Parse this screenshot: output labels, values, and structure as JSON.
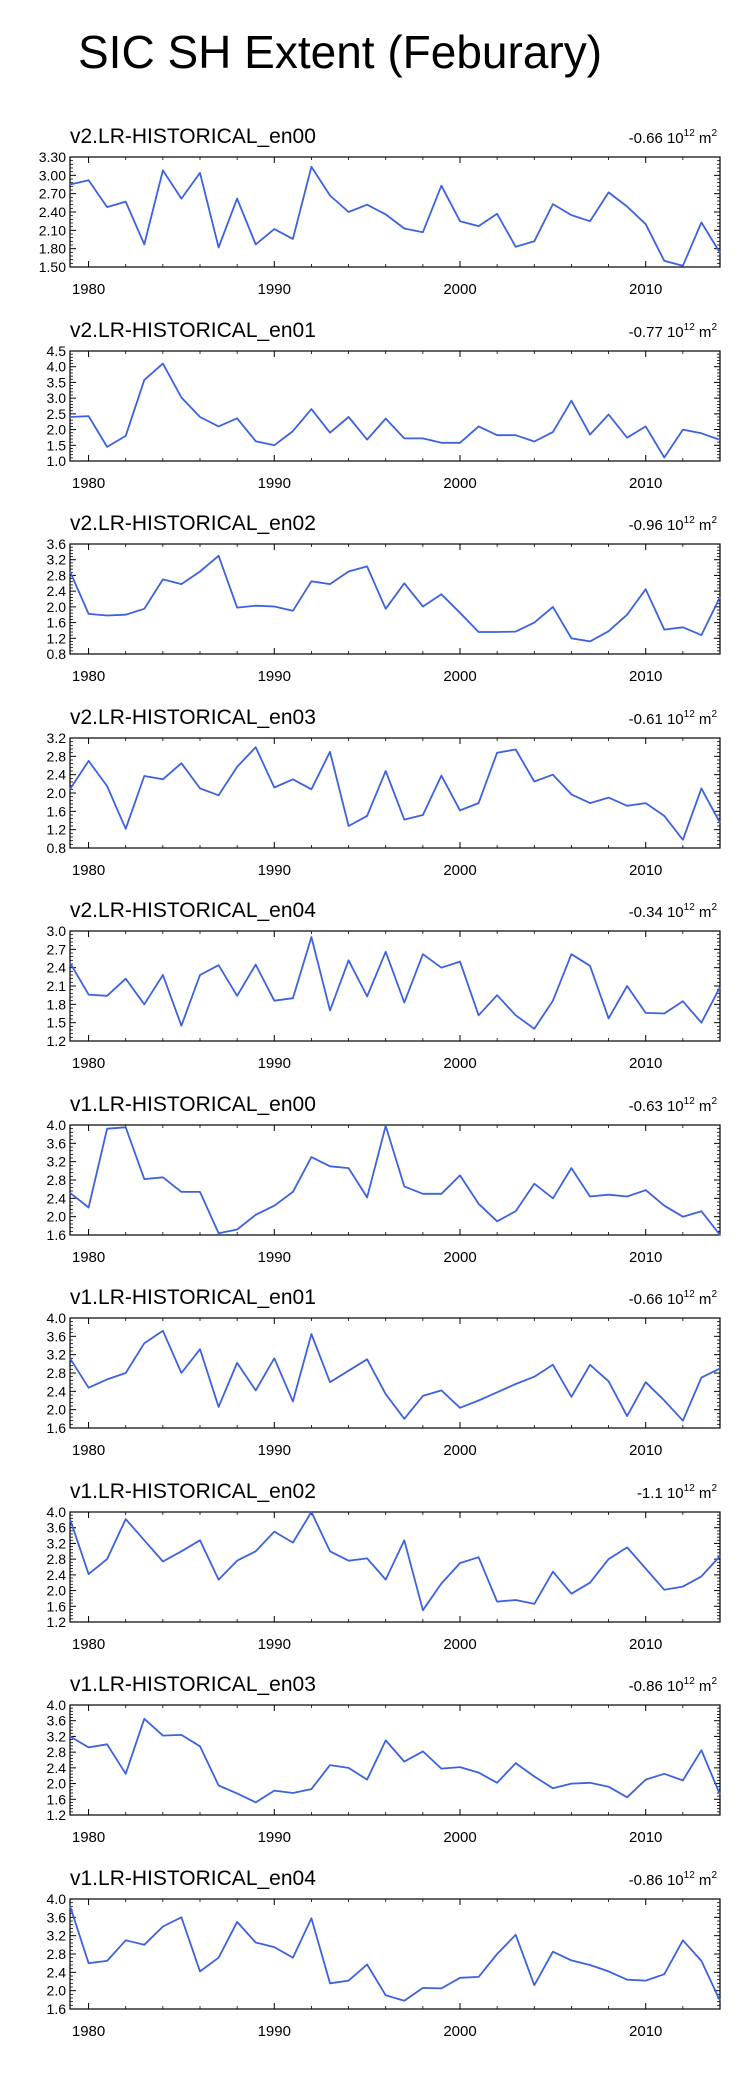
{
  "title": "SIC SH Extent (Feburary)",
  "line_color": "#3d62e0",
  "chart_data": [
    {
      "type": "line",
      "title": "v2.LR-HISTORICAL_en00",
      "trend": {
        "value": "-0.66",
        "unit_base": "10",
        "unit_exp": "12",
        "unit_suffix": "m",
        "unit_suffix_exp": "2"
      },
      "ylim": [
        1.5,
        3.3
      ],
      "yticks": [
        1.5,
        1.8,
        2.1,
        2.4,
        2.7,
        3.0,
        3.3
      ],
      "ytick_labels": [
        "1.50",
        "1.80",
        "2.10",
        "2.40",
        "2.70",
        "3.00",
        "3.30"
      ],
      "xlim": [
        1979,
        2014
      ],
      "xticks": [
        1980,
        1990,
        2000,
        2010
      ],
      "xtick_labels": [
        "1980",
        "1990",
        "2000",
        "2010"
      ],
      "x": [
        1979,
        1980,
        1981,
        1982,
        1983,
        1984,
        1985,
        1986,
        1987,
        1988,
        1989,
        1990,
        1991,
        1992,
        1993,
        1994,
        1995,
        1996,
        1997,
        1998,
        1999,
        2000,
        2001,
        2002,
        2003,
        2004,
        2005,
        2006,
        2007,
        2008,
        2009,
        2010,
        2011,
        2012,
        2013,
        2014
      ],
      "values": [
        2.85,
        2.92,
        2.48,
        2.57,
        1.87,
        3.08,
        2.62,
        3.04,
        1.82,
        2.62,
        1.87,
        2.12,
        1.96,
        3.14,
        2.67,
        2.4,
        2.52,
        2.36,
        2.13,
        2.07,
        2.83,
        2.25,
        2.17,
        2.37,
        1.83,
        1.92,
        2.53,
        2.35,
        2.25,
        2.72,
        2.49,
        2.2,
        1.6,
        1.52,
        2.23,
        1.73
      ]
    },
    {
      "type": "line",
      "title": "v2.LR-HISTORICAL_en01",
      "trend": {
        "value": "-0.77",
        "unit_base": "10",
        "unit_exp": "12",
        "unit_suffix": "m",
        "unit_suffix_exp": "2"
      },
      "ylim": [
        1.0,
        4.5
      ],
      "yticks": [
        1.0,
        1.5,
        2.0,
        2.5,
        3.0,
        3.5,
        4.0,
        4.5
      ],
      "ytick_labels": [
        "1.0",
        "1.5",
        "2.0",
        "2.5",
        "3.0",
        "3.5",
        "4.0",
        "4.5"
      ],
      "xlim": [
        1979,
        2014
      ],
      "xticks": [
        1980,
        1990,
        2000,
        2010
      ],
      "xtick_labels": [
        "1980",
        "1990",
        "2000",
        "2010"
      ],
      "x": [
        1979,
        1980,
        1981,
        1982,
        1983,
        1984,
        1985,
        1986,
        1987,
        1988,
        1989,
        1990,
        1991,
        1992,
        1993,
        1994,
        1995,
        1996,
        1997,
        1998,
        1999,
        2000,
        2001,
        2002,
        2003,
        2004,
        2005,
        2006,
        2007,
        2008,
        2009,
        2010,
        2011,
        2012,
        2013,
        2014
      ],
      "values": [
        2.4,
        2.43,
        1.45,
        1.8,
        3.58,
        4.1,
        3.02,
        2.4,
        2.1,
        2.36,
        1.63,
        1.5,
        1.95,
        2.65,
        1.9,
        2.4,
        1.68,
        2.35,
        1.72,
        1.72,
        1.58,
        1.58,
        2.1,
        1.82,
        1.82,
        1.62,
        1.92,
        2.92,
        1.84,
        2.48,
        1.74,
        2.1,
        1.11,
        2.0,
        1.88,
        1.67
      ]
    },
    {
      "type": "line",
      "title": "v2.LR-HISTORICAL_en02",
      "trend": {
        "value": "-0.96",
        "unit_base": "10",
        "unit_exp": "12",
        "unit_suffix": "m",
        "unit_suffix_exp": "2"
      },
      "ylim": [
        0.8,
        3.6
      ],
      "yticks": [
        0.8,
        1.2,
        1.6,
        2.0,
        2.4,
        2.8,
        3.2,
        3.6
      ],
      "ytick_labels": [
        "0.8",
        "1.2",
        "1.6",
        "2.0",
        "2.4",
        "2.8",
        "3.2",
        "3.6"
      ],
      "xlim": [
        1979,
        2014
      ],
      "xticks": [
        1980,
        1990,
        2000,
        2010
      ],
      "xtick_labels": [
        "1980",
        "1990",
        "2000",
        "2010"
      ],
      "x": [
        1979,
        1980,
        1981,
        1982,
        1983,
        1984,
        1985,
        1986,
        1987,
        1988,
        1989,
        1990,
        1991,
        1992,
        1993,
        1994,
        1995,
        1996,
        1997,
        1998,
        1999,
        2000,
        2001,
        2002,
        2003,
        2004,
        2005,
        2006,
        2007,
        2008,
        2009,
        2010,
        2011,
        2012,
        2013,
        2014
      ],
      "values": [
        2.9,
        1.82,
        1.78,
        1.8,
        1.95,
        2.7,
        2.58,
        2.9,
        3.3,
        1.98,
        2.03,
        2.01,
        1.9,
        2.65,
        2.58,
        2.9,
        3.03,
        1.95,
        2.6,
        2.01,
        2.32,
        1.85,
        1.36,
        1.36,
        1.37,
        1.6,
        2.0,
        1.2,
        1.12,
        1.38,
        1.8,
        2.45,
        1.42,
        1.48,
        1.28,
        2.25
      ]
    },
    {
      "type": "line",
      "title": "v2.LR-HISTORICAL_en03",
      "trend": {
        "value": "-0.61",
        "unit_base": "10",
        "unit_exp": "12",
        "unit_suffix": "m",
        "unit_suffix_exp": "2"
      },
      "ylim": [
        0.8,
        3.2
      ],
      "yticks": [
        0.8,
        1.2,
        1.6,
        2.0,
        2.4,
        2.8,
        3.2
      ],
      "ytick_labels": [
        "0.8",
        "1.2",
        "1.6",
        "2.0",
        "2.4",
        "2.8",
        "3.2"
      ],
      "xlim": [
        1979,
        2014
      ],
      "xticks": [
        1980,
        1990,
        2000,
        2010
      ],
      "xtick_labels": [
        "1980",
        "1990",
        "2000",
        "2010"
      ],
      "x": [
        1979,
        1980,
        1981,
        1982,
        1983,
        1984,
        1985,
        1986,
        1987,
        1988,
        1989,
        1990,
        1991,
        1992,
        1993,
        1994,
        1995,
        1996,
        1997,
        1998,
        1999,
        2000,
        2001,
        2002,
        2003,
        2004,
        2005,
        2006,
        2007,
        2008,
        2009,
        2010,
        2011,
        2012,
        2013,
        2014
      ],
      "values": [
        2.08,
        2.7,
        2.15,
        1.22,
        2.37,
        2.3,
        2.65,
        2.1,
        1.95,
        2.57,
        3.0,
        2.12,
        2.3,
        2.08,
        2.9,
        1.28,
        1.5,
        2.48,
        1.42,
        1.52,
        2.38,
        1.62,
        1.78,
        2.88,
        2.95,
        2.25,
        2.4,
        1.97,
        1.78,
        1.9,
        1.72,
        1.78,
        1.5,
        0.98,
        2.1,
        1.35
      ]
    },
    {
      "type": "line",
      "title": "v2.LR-HISTORICAL_en04",
      "trend": {
        "value": "-0.34",
        "unit_base": "10",
        "unit_exp": "12",
        "unit_suffix": "m",
        "unit_suffix_exp": "2"
      },
      "ylim": [
        1.2,
        3.0
      ],
      "yticks": [
        1.2,
        1.5,
        1.8,
        2.1,
        2.4,
        2.7,
        3.0
      ],
      "ytick_labels": [
        "1.2",
        "1.5",
        "1.8",
        "2.1",
        "2.4",
        "2.7",
        "3.0"
      ],
      "xlim": [
        1979,
        2014
      ],
      "xticks": [
        1980,
        1990,
        2000,
        2010
      ],
      "xtick_labels": [
        "1980",
        "1990",
        "2000",
        "2010"
      ],
      "x": [
        1979,
        1980,
        1981,
        1982,
        1983,
        1984,
        1985,
        1986,
        1987,
        1988,
        1989,
        1990,
        1991,
        1992,
        1993,
        1994,
        1995,
        1996,
        1997,
        1998,
        1999,
        2000,
        2001,
        2002,
        2003,
        2004,
        2005,
        2006,
        2007,
        2008,
        2009,
        2010,
        2011,
        2012,
        2013,
        2014
      ],
      "values": [
        2.48,
        1.96,
        1.94,
        2.22,
        1.8,
        2.28,
        1.45,
        2.28,
        2.44,
        1.94,
        2.45,
        1.86,
        1.9,
        2.9,
        1.7,
        2.52,
        1.93,
        2.66,
        1.83,
        2.62,
        2.4,
        2.5,
        1.62,
        1.95,
        1.62,
        1.4,
        1.86,
        2.62,
        2.43,
        1.57,
        2.1,
        1.66,
        1.65,
        1.85,
        1.5,
        2.08
      ]
    },
    {
      "type": "line",
      "title": "v1.LR-HISTORICAL_en00",
      "trend": {
        "value": "-0.63",
        "unit_base": "10",
        "unit_exp": "12",
        "unit_suffix": "m",
        "unit_suffix_exp": "2"
      },
      "ylim": [
        1.6,
        4.0
      ],
      "yticks": [
        1.6,
        2.0,
        2.4,
        2.8,
        3.2,
        3.6,
        4.0
      ],
      "ytick_labels": [
        "1.6",
        "2.0",
        "2.4",
        "2.8",
        "3.2",
        "3.6",
        "4.0"
      ],
      "xlim": [
        1979,
        2014
      ],
      "xticks": [
        1980,
        1990,
        2000,
        2010
      ],
      "xtick_labels": [
        "1980",
        "1990",
        "2000",
        "2010"
      ],
      "x": [
        1979,
        1980,
        1981,
        1982,
        1983,
        1984,
        1985,
        1986,
        1987,
        1988,
        1989,
        1990,
        1991,
        1992,
        1993,
        1994,
        1995,
        1996,
        1997,
        1998,
        1999,
        2000,
        2001,
        2002,
        2003,
        2004,
        2005,
        2006,
        2007,
        2008,
        2009,
        2010,
        2011,
        2012,
        2013,
        2014
      ],
      "values": [
        2.52,
        2.2,
        3.92,
        3.95,
        2.82,
        2.86,
        2.54,
        2.54,
        1.64,
        1.72,
        2.04,
        2.24,
        2.54,
        3.3,
        3.1,
        3.06,
        2.42,
        3.98,
        2.66,
        2.5,
        2.5,
        2.9,
        2.28,
        1.9,
        2.12,
        2.72,
        2.4,
        3.06,
        2.44,
        2.48,
        2.44,
        2.58,
        2.24,
        2.0,
        2.12,
        1.6
      ]
    },
    {
      "type": "line",
      "title": "v1.LR-HISTORICAL_en01",
      "trend": {
        "value": "-0.66",
        "unit_base": "10",
        "unit_exp": "12",
        "unit_suffix": "m",
        "unit_suffix_exp": "2"
      },
      "ylim": [
        1.6,
        4.0
      ],
      "yticks": [
        1.6,
        2.0,
        2.4,
        2.8,
        3.2,
        3.6,
        4.0
      ],
      "ytick_labels": [
        "1.6",
        "2.0",
        "2.4",
        "2.8",
        "3.2",
        "3.6",
        "4.0"
      ],
      "xlim": [
        1979,
        2014
      ],
      "xticks": [
        1980,
        1990,
        2000,
        2010
      ],
      "xtick_labels": [
        "1980",
        "1990",
        "2000",
        "2010"
      ],
      "x": [
        1979,
        1980,
        1981,
        1982,
        1983,
        1984,
        1985,
        1986,
        1987,
        1988,
        1989,
        1990,
        1991,
        1992,
        1993,
        1994,
        1995,
        1996,
        1997,
        1998,
        1999,
        2000,
        2001,
        2002,
        2003,
        2004,
        2005,
        2006,
        2007,
        2008,
        2009,
        2010,
        2011,
        2012,
        2013,
        2014
      ],
      "values": [
        3.12,
        2.48,
        2.66,
        2.8,
        3.45,
        3.72,
        2.8,
        3.32,
        2.06,
        3.02,
        2.42,
        3.12,
        2.18,
        3.65,
        2.6,
        2.85,
        3.1,
        2.34,
        1.8,
        2.3,
        2.42,
        2.04,
        2.2,
        2.38,
        2.56,
        2.72,
        2.98,
        2.28,
        2.98,
        2.62,
        1.86,
        2.6,
        2.2,
        1.76,
        2.7,
        2.9
      ]
    },
    {
      "type": "line",
      "title": "v1.LR-HISTORICAL_en02",
      "trend": {
        "value": "-1.1",
        "unit_base": "10",
        "unit_exp": "12",
        "unit_suffix": "m",
        "unit_suffix_exp": "2"
      },
      "ylim": [
        1.2,
        4.0
      ],
      "yticks": [
        1.2,
        1.6,
        2.0,
        2.4,
        2.8,
        3.2,
        3.6,
        4.0
      ],
      "ytick_labels": [
        "1.2",
        "1.6",
        "2.0",
        "2.4",
        "2.8",
        "3.2",
        "3.6",
        "4.0"
      ],
      "xlim": [
        1979,
        2014
      ],
      "xticks": [
        1980,
        1990,
        2000,
        2010
      ],
      "xtick_labels": [
        "1980",
        "1990",
        "2000",
        "2010"
      ],
      "x": [
        1979,
        1980,
        1981,
        1982,
        1983,
        1984,
        1985,
        1986,
        1987,
        1988,
        1989,
        1990,
        1991,
        1992,
        1993,
        1994,
        1995,
        1996,
        1997,
        1998,
        1999,
        2000,
        2001,
        2002,
        2003,
        2004,
        2005,
        2006,
        2007,
        2008,
        2009,
        2010,
        2011,
        2012,
        2013,
        2014
      ],
      "values": [
        3.82,
        2.42,
        2.8,
        3.82,
        3.28,
        2.74,
        3.0,
        3.28,
        2.28,
        2.76,
        3.0,
        3.5,
        3.22,
        4.0,
        3.0,
        2.76,
        2.82,
        2.28,
        3.28,
        1.5,
        2.18,
        2.7,
        2.85,
        1.72,
        1.76,
        1.66,
        2.48,
        1.92,
        2.2,
        2.8,
        3.1,
        2.56,
        2.02,
        2.1,
        2.36,
        2.88
      ]
    },
    {
      "type": "line",
      "title": "v1.LR-HISTORICAL_en03",
      "trend": {
        "value": "-0.86",
        "unit_base": "10",
        "unit_exp": "12",
        "unit_suffix": "m",
        "unit_suffix_exp": "2"
      },
      "ylim": [
        1.2,
        4.0
      ],
      "yticks": [
        1.2,
        1.6,
        2.0,
        2.4,
        2.8,
        3.2,
        3.6,
        4.0
      ],
      "ytick_labels": [
        "1.2",
        "1.6",
        "2.0",
        "2.4",
        "2.8",
        "3.2",
        "3.6",
        "4.0"
      ],
      "xlim": [
        1979,
        2014
      ],
      "xticks": [
        1980,
        1990,
        2000,
        2010
      ],
      "xtick_labels": [
        "1980",
        "1990",
        "2000",
        "2010"
      ],
      "x": [
        1979,
        1980,
        1981,
        1982,
        1983,
        1984,
        1985,
        1986,
        1987,
        1988,
        1989,
        1990,
        1991,
        1992,
        1993,
        1994,
        1995,
        1996,
        1997,
        1998,
        1999,
        2000,
        2001,
        2002,
        2003,
        2004,
        2005,
        2006,
        2007,
        2008,
        2009,
        2010,
        2011,
        2012,
        2013,
        2014
      ],
      "values": [
        3.2,
        2.92,
        3.0,
        2.25,
        3.65,
        3.22,
        3.24,
        2.95,
        1.95,
        1.75,
        1.52,
        1.82,
        1.76,
        1.86,
        2.47,
        2.4,
        2.1,
        3.1,
        2.56,
        2.82,
        2.38,
        2.42,
        2.28,
        2.02,
        2.52,
        2.18,
        1.88,
        2.0,
        2.02,
        1.92,
        1.65,
        2.1,
        2.25,
        2.08,
        2.85,
        1.72
      ]
    },
    {
      "type": "line",
      "title": "v1.LR-HISTORICAL_en04",
      "trend": {
        "value": "-0.86",
        "unit_base": "10",
        "unit_exp": "12",
        "unit_suffix": "m",
        "unit_suffix_exp": "2"
      },
      "ylim": [
        1.6,
        4.0
      ],
      "yticks": [
        1.6,
        2.0,
        2.4,
        2.8,
        3.2,
        3.6,
        4.0
      ],
      "ytick_labels": [
        "1.6",
        "2.0",
        "2.4",
        "2.8",
        "3.2",
        "3.6",
        "4.0"
      ],
      "xlim": [
        1979,
        2014
      ],
      "xticks": [
        1980,
        1990,
        2000,
        2010
      ],
      "xtick_labels": [
        "1980",
        "1990",
        "2000",
        "2010"
      ],
      "x": [
        1979,
        1980,
        1981,
        1982,
        1983,
        1984,
        1985,
        1986,
        1987,
        1988,
        1989,
        1990,
        1991,
        1992,
        1993,
        1994,
        1995,
        1996,
        1997,
        1998,
        1999,
        2000,
        2001,
        2002,
        2003,
        2004,
        2005,
        2006,
        2007,
        2008,
        2009,
        2010,
        2011,
        2012,
        2013,
        2014
      ],
      "values": [
        3.85,
        2.6,
        2.65,
        3.1,
        3.0,
        3.4,
        3.6,
        2.42,
        2.72,
        3.5,
        3.05,
        2.95,
        2.72,
        3.58,
        2.16,
        2.22,
        2.57,
        1.9,
        1.78,
        2.06,
        2.05,
        2.28,
        2.3,
        2.8,
        3.22,
        2.12,
        2.85,
        2.66,
        2.56,
        2.42,
        2.24,
        2.22,
        2.36,
        3.1,
        2.65,
        1.78
      ]
    }
  ]
}
